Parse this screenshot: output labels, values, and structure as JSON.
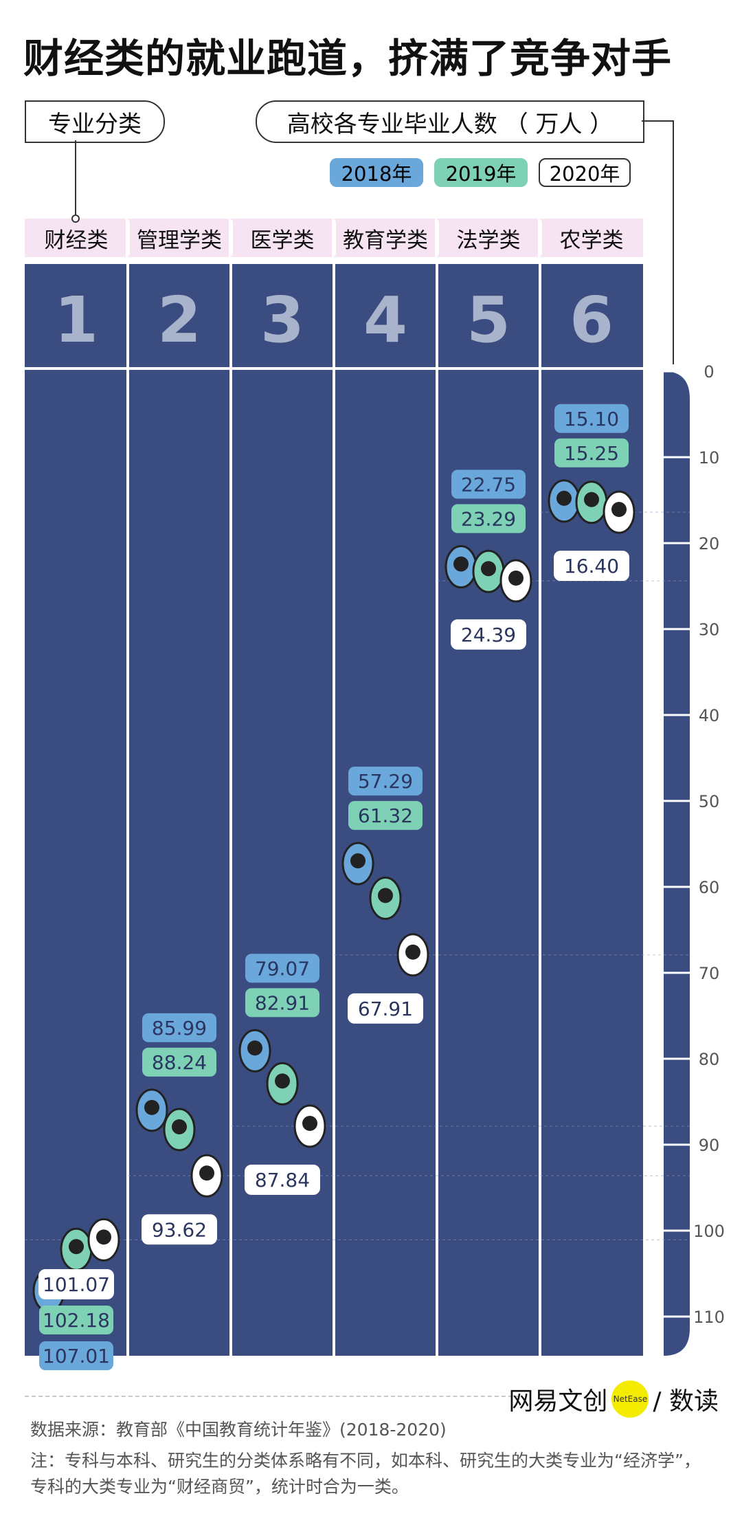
{
  "title": "财经类的就业跑道，挤满了竞争对手",
  "category_box": "专业分类",
  "value_box": "高校各专业毕业人数 （ 万人 ）",
  "colors": {
    "track": "#3b4d80",
    "y2018": "#6aa7da",
    "y2019": "#7fd1b6",
    "y2020": "#ffffff",
    "ink": "#2a3560"
  },
  "chart_data": {
    "type": "bar",
    "categories": [
      "财经类",
      "管理学类",
      "医学类",
      "教育学类",
      "法学类",
      "农学类"
    ],
    "lane_numbers": [
      "1",
      "2",
      "3",
      "4",
      "5",
      "6"
    ],
    "series": [
      {
        "name": "2018年",
        "values": [
          107.01,
          85.99,
          79.07,
          57.29,
          22.75,
          15.1
        ]
      },
      {
        "name": "2019年",
        "values": [
          102.18,
          88.24,
          82.91,
          61.32,
          23.29,
          15.25
        ]
      },
      {
        "name": "2020年",
        "values": [
          101.07,
          93.62,
          87.84,
          67.91,
          24.39,
          16.4
        ]
      }
    ],
    "yticks": [
      0,
      10,
      20,
      30,
      40,
      50,
      60,
      70,
      80,
      90,
      100,
      110
    ],
    "ylim": [
      0,
      115
    ],
    "legend": "top-right"
  },
  "brand": {
    "name": "网易文创",
    "badge": "NetEase",
    "suffix": "/ 数读"
  },
  "source": "数据来源：教育部《中国教育统计年鉴》(2018-2020)",
  "note": "注：专科与本科、研究生的分类体系略有不同，如本科、研究生的大类专业为“经济学”，专科的大类专业为“财经商贸”，统计时合为一类。"
}
